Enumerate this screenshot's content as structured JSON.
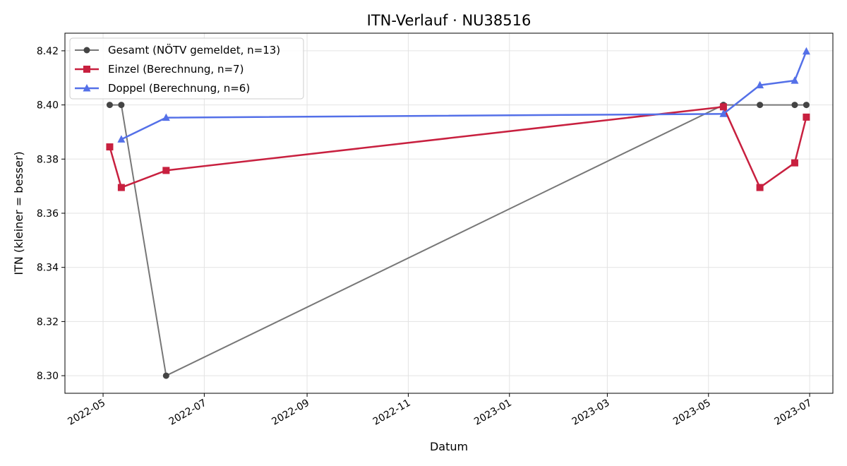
{
  "chart_data": {
    "type": "line",
    "title": "ITN-Verlauf · NU38516",
    "xlabel": "Datum",
    "ylabel": "ITN  (kleiner = besser)",
    "x_type": "date",
    "xlim": [
      "2022-04-08",
      "2023-07-15"
    ],
    "ylim": [
      8.2935,
      8.4265
    ],
    "x_ticks": [
      "2022-05",
      "2022-07",
      "2022-09",
      "2022-11",
      "2023-01",
      "2023-03",
      "2023-05",
      "2023-07"
    ],
    "y_ticks": [
      8.3,
      8.32,
      8.34,
      8.36,
      8.38,
      8.4,
      8.42
    ],
    "y_tick_labels": [
      "8.30",
      "8.32",
      "8.34",
      "8.36",
      "8.38",
      "8.40",
      "8.42"
    ],
    "grid": true,
    "legend_position": "top-left",
    "series": [
      {
        "name": "Gesamt (NÖTV gemeldet, n=13)",
        "color": "#777777",
        "marker": "circle",
        "x": [
          "2022-05-05",
          "2022-05-12",
          "2022-06-08",
          "2023-05-10",
          "2023-06-01",
          "2023-06-22",
          "2023-06-29"
        ],
        "y": [
          8.4,
          8.4,
          8.3,
          8.4,
          8.4,
          8.4,
          8.4
        ]
      },
      {
        "name": "Einzel (Berechnung, n=7)",
        "color": "#c8203f",
        "marker": "square",
        "x": [
          "2022-05-05",
          "2022-05-12",
          "2022-06-08",
          "2023-05-10",
          "2023-06-01",
          "2023-06-22",
          "2023-06-29"
        ],
        "y": [
          8.3845,
          8.3695,
          8.3758,
          8.3993,
          8.3695,
          8.3786,
          8.3955
        ]
      },
      {
        "name": "Doppel (Berechnung, n=6)",
        "color": "#5470e8",
        "marker": "triangle",
        "x": [
          "2022-05-12",
          "2022-06-08",
          "2023-05-10",
          "2023-06-01",
          "2023-06-22",
          "2023-06-29"
        ],
        "y": [
          8.3873,
          8.3953,
          8.3967,
          8.4073,
          8.409,
          8.4198
        ]
      }
    ]
  }
}
